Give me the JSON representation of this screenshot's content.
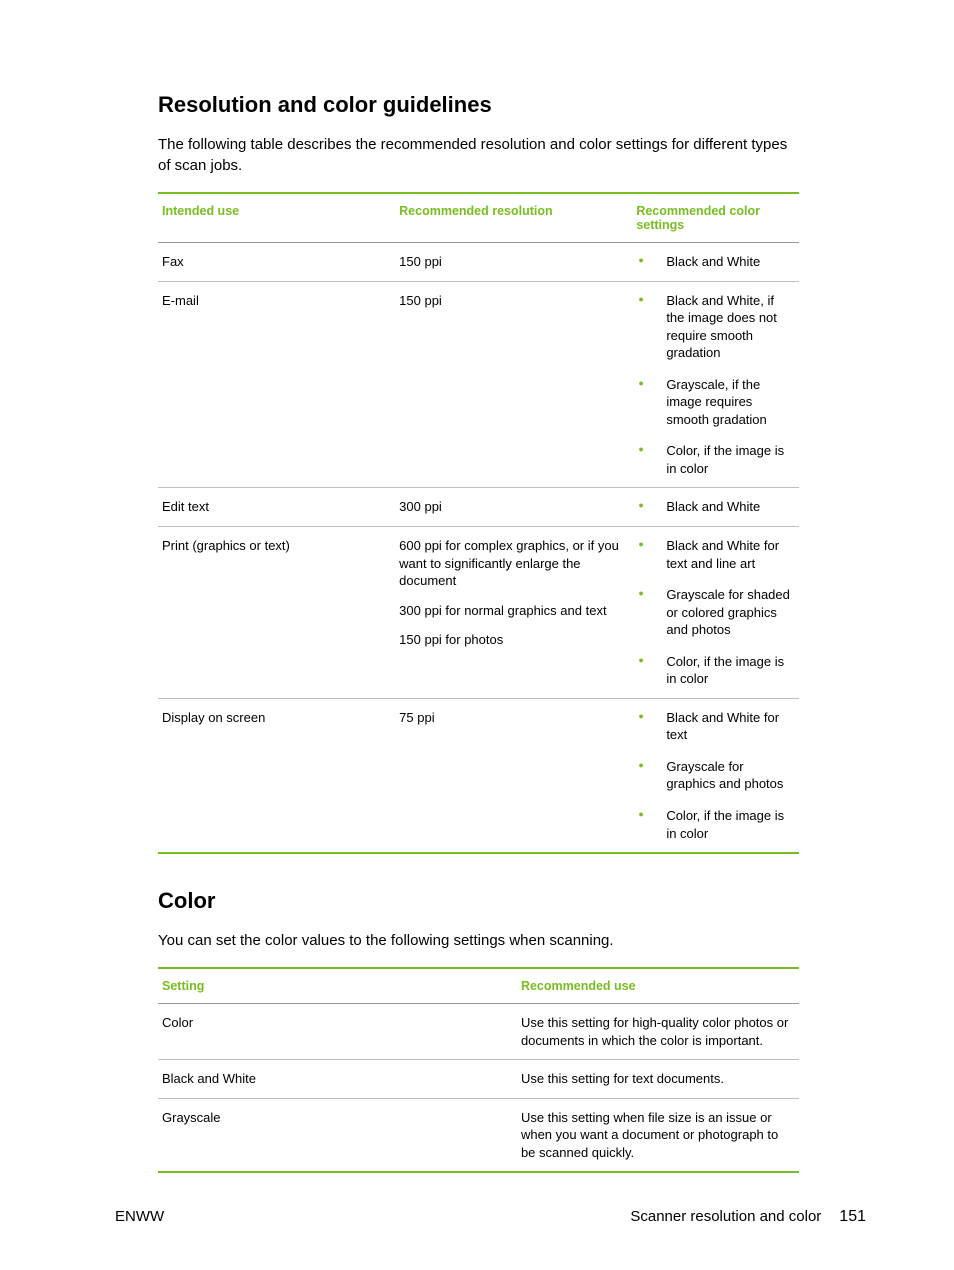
{
  "colors": {
    "accent": "#78be20",
    "text": "#000000",
    "rule": "#bfbfbf",
    "background": "#ffffff"
  },
  "section1": {
    "heading": "Resolution and color guidelines",
    "intro": "The following table describes the recommended resolution and color settings for different types of scan jobs.",
    "headers": {
      "col1": "Intended use",
      "col2": "Recommended resolution",
      "col3": "Recommended color settings"
    },
    "rows": [
      {
        "use": "Fax",
        "res": [
          "150 ppi"
        ],
        "color": [
          "Black and White"
        ]
      },
      {
        "use": "E-mail",
        "res": [
          "150 ppi"
        ],
        "color": [
          "Black and White, if the image does not require smooth gradation",
          "Grayscale, if the image requires smooth gradation",
          "Color, if the image is in color"
        ]
      },
      {
        "use": "Edit text",
        "res": [
          "300 ppi"
        ],
        "color": [
          "Black and White"
        ]
      },
      {
        "use": "Print (graphics or text)",
        "res": [
          "600 ppi for complex graphics, or if you want to significantly enlarge the document",
          "300 ppi for normal graphics and text",
          "150 ppi for photos"
        ],
        "color": [
          "Black and White for text and line art",
          "Grayscale for shaded or colored graphics and photos",
          "Color, if the image is in color"
        ]
      },
      {
        "use": "Display on screen",
        "res": [
          "75 ppi"
        ],
        "color": [
          "Black and White for text",
          "Grayscale for graphics and photos",
          "Color, if the image is in color"
        ]
      }
    ]
  },
  "section2": {
    "heading": "Color",
    "intro": "You can set the color values to the following settings when scanning.",
    "headers": {
      "col1": "Setting",
      "col2": "Recommended use"
    },
    "rows": [
      {
        "setting": "Color",
        "use": "Use this setting for high-quality color photos or documents in which the color is important."
      },
      {
        "setting": "Black and White",
        "use": "Use this setting for text documents."
      },
      {
        "setting": "Grayscale",
        "use": "Use this setting when file size is an issue or when you want a document or photograph to be scanned quickly."
      }
    ]
  },
  "footer": {
    "left": "ENWW",
    "right_text": "Scanner resolution and color",
    "page_number": "151"
  }
}
